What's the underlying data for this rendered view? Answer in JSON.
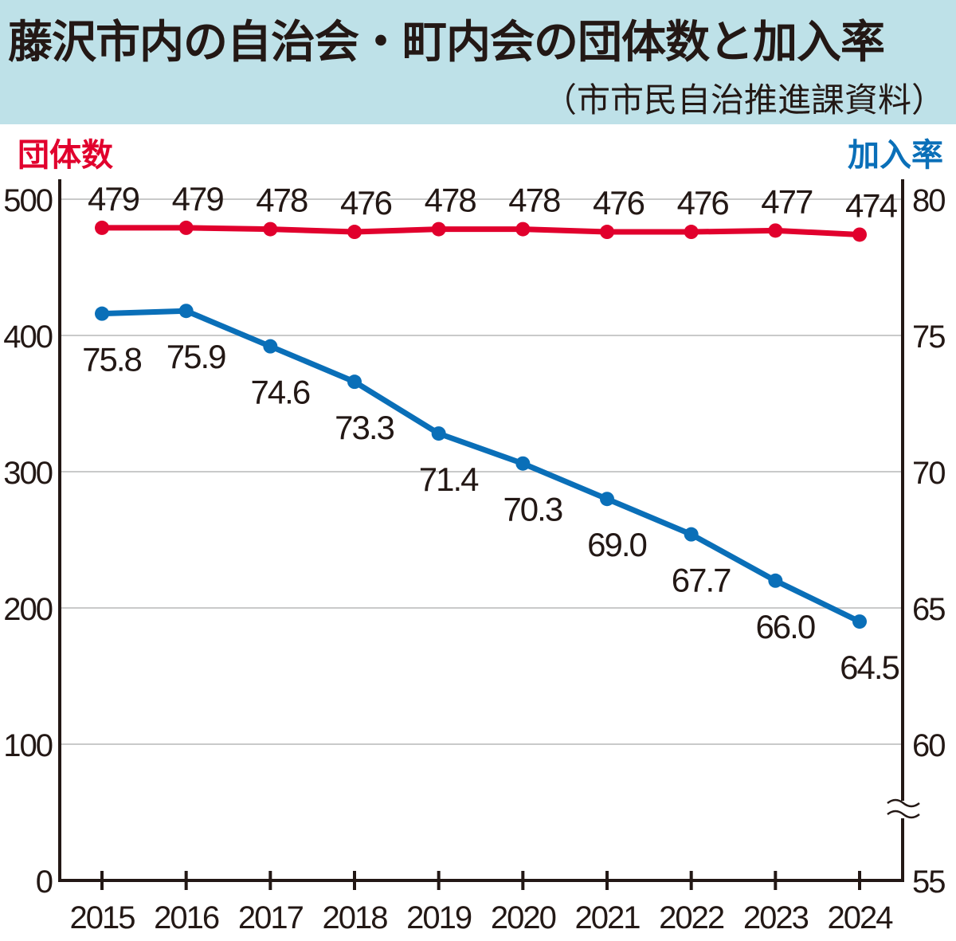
{
  "chart_data": {
    "type": "line",
    "title": "藤沢市内の自治会・町内会の団体数と加入率",
    "subtitle": "（市市民自治推進課資料）",
    "categories": [
      "2015",
      "2016",
      "2017",
      "2018",
      "2019",
      "2020",
      "2021",
      "2022",
      "2023",
      "2024"
    ],
    "series": [
      {
        "name": "団体数",
        "axis": "left",
        "color": "#e1002d",
        "values": [
          479,
          479,
          478,
          476,
          478,
          478,
          476,
          476,
          477,
          474
        ],
        "labels": [
          "479",
          "479",
          "478",
          "476",
          "478",
          "478",
          "476",
          "476",
          "477",
          "474"
        ]
      },
      {
        "name": "加入率",
        "axis": "right",
        "color": "#0a6fb8",
        "values": [
          75.8,
          75.9,
          74.6,
          73.3,
          71.4,
          70.3,
          69.0,
          67.7,
          66.0,
          64.5
        ],
        "labels": [
          "75.8",
          "75.9",
          "74.6",
          "73.3",
          "71.4",
          "70.3",
          "69.0",
          "67.7",
          "66.0",
          "64.5"
        ]
      }
    ],
    "ylabel_left": "団体数",
    "ylabel_right": "加入率",
    "ylim_left": [
      0,
      500
    ],
    "ylim_right": [
      55,
      80
    ],
    "yticks_left": [
      "0",
      "100",
      "200",
      "300",
      "400",
      "500"
    ],
    "yticks_right": [
      "55",
      "60",
      "65",
      "70",
      "75",
      "80"
    ],
    "right_axis_break": true,
    "grid": true
  }
}
